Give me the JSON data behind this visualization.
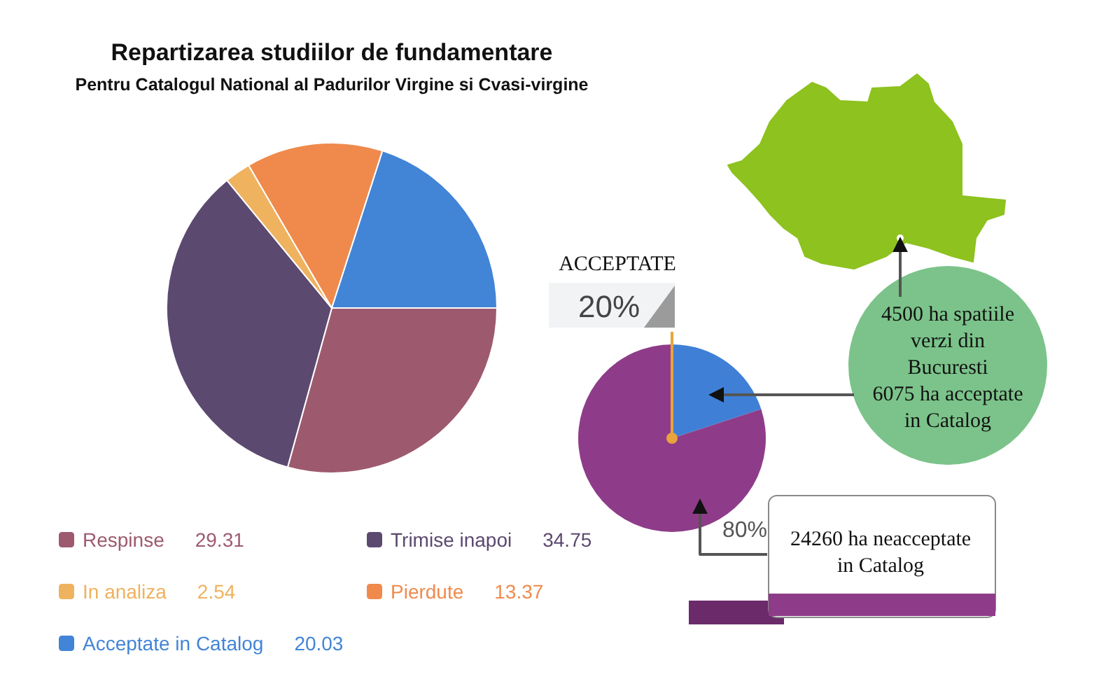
{
  "chart_data": [
    {
      "type": "pie",
      "title": "Repartizarea studiilor de fundamentare",
      "subtitle": "Pentru Catalogul National al Padurilor Virgine si Cvasi-virgine",
      "categories": [
        "Respinse",
        "Trimise inapoi",
        "In analiza",
        "Pierdute",
        "Acceptate in Catalog"
      ],
      "values": [
        29.31,
        34.75,
        2.54,
        13.37,
        20.03
      ],
      "colors": [
        "#9d5a6e",
        "#5c4970",
        "#efb25e",
        "#ef8a4c",
        "#4284d6"
      ],
      "legend": "bottom left",
      "data_labels": true
    },
    {
      "type": "pie",
      "categories": [
        "ACCEPTATE",
        null
      ],
      "values": [
        20,
        80
      ],
      "colors": [
        "#3f80d6",
        "#8e3c89"
      ],
      "value_labels": [
        "20%",
        "80%"
      ],
      "annotations": [
        "4500 ha spatiile\nverzi din\nBucuresti\n6075 ha acceptate\nin Catalog",
        "24260 ha neacceptate\nin Catalog"
      ]
    }
  ]
}
